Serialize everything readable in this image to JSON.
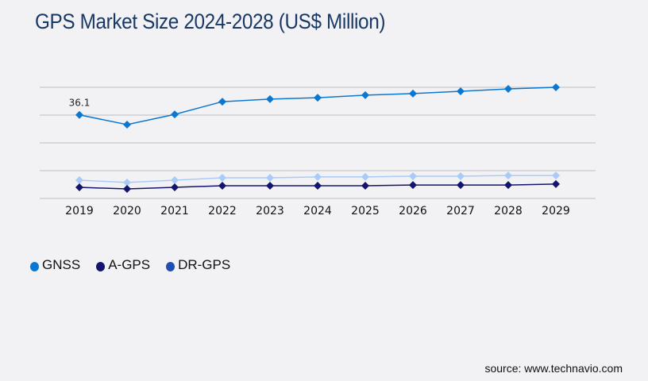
{
  "title": "GPS Market Size 2024-2028 (US$ Million)",
  "source": "source: www.technavio.com",
  "chart_data": {
    "type": "line",
    "title": "GPS Market Size 2024-2028 (US$ Million)",
    "xlabel": "",
    "ylabel": "",
    "x": [
      "2019",
      "2020",
      "2021",
      "2022",
      "2023",
      "2024",
      "2025",
      "2026",
      "2027",
      "2028",
      "2029"
    ],
    "ylim": [
      0,
      48
    ],
    "yticks": [
      0,
      12,
      24,
      36,
      48
    ],
    "grid": true,
    "legend_position": "bottom-left",
    "series": [
      {
        "name": "GNSS",
        "color": "#0a78d2",
        "marker_color": "#0a78d2",
        "legend_color": "#0a78d2",
        "values": [
          36.1,
          31.9,
          36.3,
          41.8,
          42.9,
          43.5,
          44.6,
          45.3,
          46.3,
          47.3,
          48.0
        ]
      },
      {
        "name": "A-GPS",
        "color": "#14146e",
        "marker_color": "#14146e",
        "legend_color": "#14146e",
        "values": [
          4.8,
          4.1,
          4.8,
          5.5,
          5.5,
          5.5,
          5.5,
          5.8,
          5.8,
          5.8,
          6.2
        ]
      },
      {
        "name": "DR-GPS",
        "color": "#a8cbf7",
        "marker_color": "#a8cbf7",
        "legend_color": "#1f4fb5",
        "values": [
          7.9,
          6.9,
          7.9,
          8.9,
          8.9,
          9.3,
          9.3,
          9.6,
          9.6,
          9.9,
          9.9
        ]
      }
    ],
    "annotations": [
      {
        "series": "GNSS",
        "x": "2019",
        "label": "36.1"
      }
    ]
  }
}
